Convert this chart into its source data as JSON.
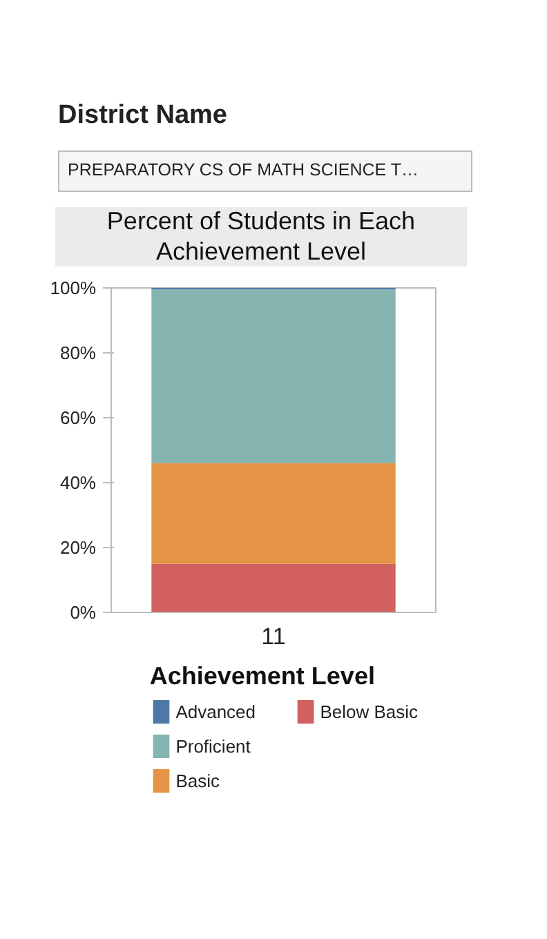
{
  "chart_data": {
    "type": "bar",
    "stacked": true,
    "title": "Percent of Students in Each Achievement Level",
    "annotations": [
      "District Name",
      "PREPARATORY CS OF MATH SCIENCE T…"
    ],
    "legend_title": "Achievement Level",
    "legend": "bottom",
    "grid": false,
    "categories": [
      "11"
    ],
    "ylim": [
      0,
      100
    ],
    "yticks": [
      {
        "value": 0,
        "label": "0%"
      },
      {
        "value": 20,
        "label": "20%"
      },
      {
        "value": 40,
        "label": "40%"
      },
      {
        "value": 60,
        "label": "60%"
      },
      {
        "value": 80,
        "label": "80%"
      },
      {
        "value": 100,
        "label": "100%"
      }
    ],
    "series": [
      {
        "name": "Below Basic",
        "color": "#d1605e",
        "values": [
          15
        ]
      },
      {
        "name": "Basic",
        "color": "#e49444",
        "values": [
          31
        ]
      },
      {
        "name": "Proficient",
        "color": "#86b4b0",
        "values": [
          53.5
        ]
      },
      {
        "name": "Advanced",
        "color": "#4e79a7",
        "values": [
          0.5
        ]
      }
    ]
  }
}
